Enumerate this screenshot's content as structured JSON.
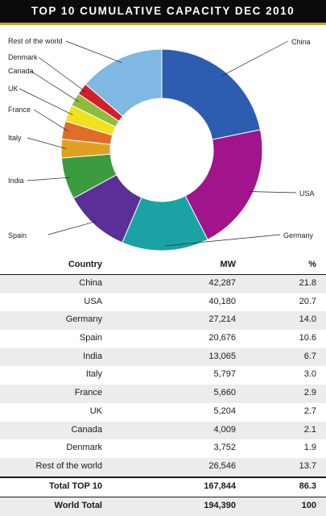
{
  "title": "TOP 10 CUMULATIVE CAPACITY DEC 2010",
  "chart_data": {
    "type": "pie",
    "title": "TOP 10 CUMULATIVE CAPACITY DEC 2010",
    "donut": true,
    "slices": [
      {
        "label": "China",
        "value": 21.8,
        "color": "#2d5db0"
      },
      {
        "label": "USA",
        "value": 20.7,
        "color": "#a0148c"
      },
      {
        "label": "Germany",
        "value": 14.0,
        "color": "#1aa2a5"
      },
      {
        "label": "Spain",
        "value": 10.6,
        "color": "#5a2f97"
      },
      {
        "label": "India",
        "value": 6.7,
        "color": "#3b9b3f"
      },
      {
        "label": "Italy",
        "value": 3.0,
        "color": "#e0a021"
      },
      {
        "label": "France",
        "value": 2.9,
        "color": "#e06d28"
      },
      {
        "label": "UK",
        "value": 2.7,
        "color": "#f1e21e"
      },
      {
        "label": "Canada",
        "value": 2.1,
        "color": "#8fbd3b"
      },
      {
        "label": "Denmark",
        "value": 1.9,
        "color": "#d11f2c"
      },
      {
        "label": "Rest of the world",
        "value": 13.7,
        "color": "#7fb8e2"
      }
    ]
  },
  "table": {
    "headers": [
      "Country",
      "MW",
      "%"
    ],
    "rows": [
      [
        "China",
        "42,287",
        "21.8"
      ],
      [
        "USA",
        "40,180",
        "20.7"
      ],
      [
        "Germany",
        "27,214",
        "14.0"
      ],
      [
        "Spain",
        "20,676",
        "10.6"
      ],
      [
        "India",
        "13,065",
        "6.7"
      ],
      [
        "Italy",
        "5,797",
        "3.0"
      ],
      [
        "France",
        "5,660",
        "2.9"
      ],
      [
        "UK",
        "5,204",
        "2.7"
      ],
      [
        "Canada",
        "4,009",
        "2.1"
      ],
      [
        "Denmark",
        "3,752",
        "1.9"
      ],
      [
        "Rest of the world",
        "26,546",
        "13.7"
      ]
    ],
    "total": [
      "Total TOP 10",
      "167,844",
      "86.3"
    ],
    "world": [
      "World Total",
      "194,390",
      "100"
    ]
  }
}
